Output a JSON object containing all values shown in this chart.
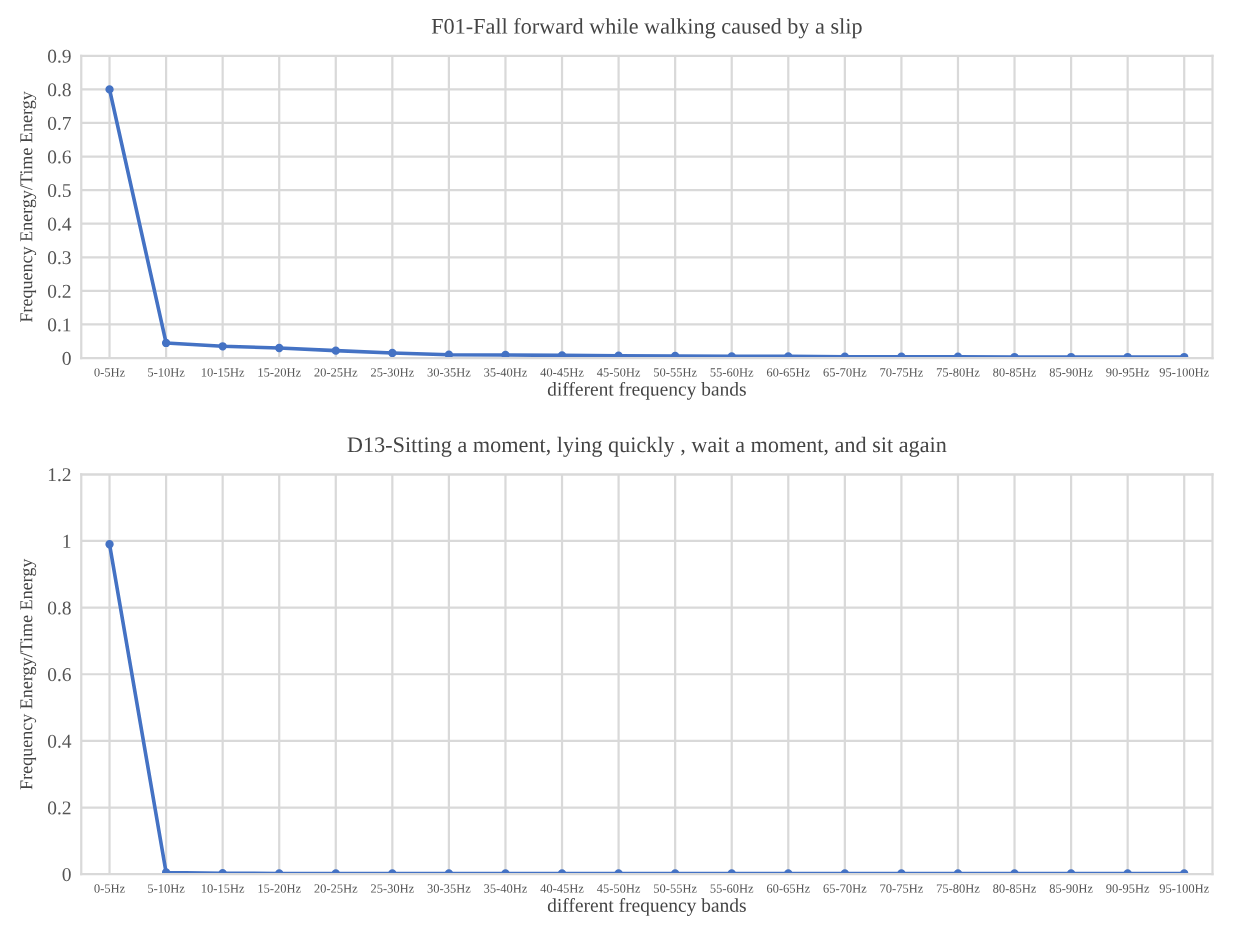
{
  "chart_data": [
    {
      "type": "line",
      "title": "F01-Fall forward while walking caused by a slip",
      "xlabel": "different frequency bands",
      "ylabel": "Frequency Energy/Time Energy",
      "categories": [
        "0-5Hz",
        "5-10Hz",
        "10-15Hz",
        "15-20Hz",
        "20-25Hz",
        "25-30Hz",
        "30-35Hz",
        "35-40Hz",
        "40-45Hz",
        "45-50Hz",
        "50-55Hz",
        "55-60Hz",
        "60-65Hz",
        "65-70Hz",
        "70-75Hz",
        "75-80Hz",
        "80-85Hz",
        "85-90Hz",
        "90-95Hz",
        "95-100Hz"
      ],
      "series": [
        {
          "color": "#4472c4",
          "values": [
            0.8,
            0.045,
            0.035,
            0.03,
            0.022,
            0.015,
            0.01,
            0.009,
            0.008,
            0.007,
            0.006,
            0.005,
            0.005,
            0.004,
            0.004,
            0.004,
            0.003,
            0.003,
            0.003,
            0.003
          ]
        }
      ],
      "ylim": [
        0,
        0.9
      ],
      "yticks": [
        0,
        0.1,
        0.2,
        0.3,
        0.4,
        0.5,
        0.6,
        0.7,
        0.8,
        0.9
      ],
      "grid": true,
      "marker": "circle",
      "line_style": "solid"
    },
    {
      "type": "line",
      "title": "D13-Sitting a moment, lying quickly , wait a moment, and sit again",
      "xlabel": "different frequency bands",
      "ylabel": "Frequency Energy/Time Energy",
      "categories": [
        "0-5Hz",
        "5-10Hz",
        "10-15Hz",
        "15-20Hz",
        "20-25Hz",
        "25-30Hz",
        "30-35Hz",
        "35-40Hz",
        "40-45Hz",
        "45-50Hz",
        "50-55Hz",
        "55-60Hz",
        "60-65Hz",
        "65-70Hz",
        "70-75Hz",
        "75-80Hz",
        "80-85Hz",
        "85-90Hz",
        "90-95Hz",
        "95-100Hz"
      ],
      "series": [
        {
          "color": "#4472c4",
          "values": [
            0.99,
            0.005,
            0.003,
            0.002,
            0.002,
            0.002,
            0.002,
            0.002,
            0.002,
            0.002,
            0.002,
            0.002,
            0.002,
            0.002,
            0.002,
            0.002,
            0.002,
            0.002,
            0.002,
            0.002
          ]
        }
      ],
      "ylim": [
        0,
        1.2
      ],
      "yticks": [
        0,
        0.2,
        0.4,
        0.6,
        0.8,
        1,
        1.2
      ],
      "grid": true,
      "marker": "circle",
      "line_style": "solid"
    }
  ]
}
